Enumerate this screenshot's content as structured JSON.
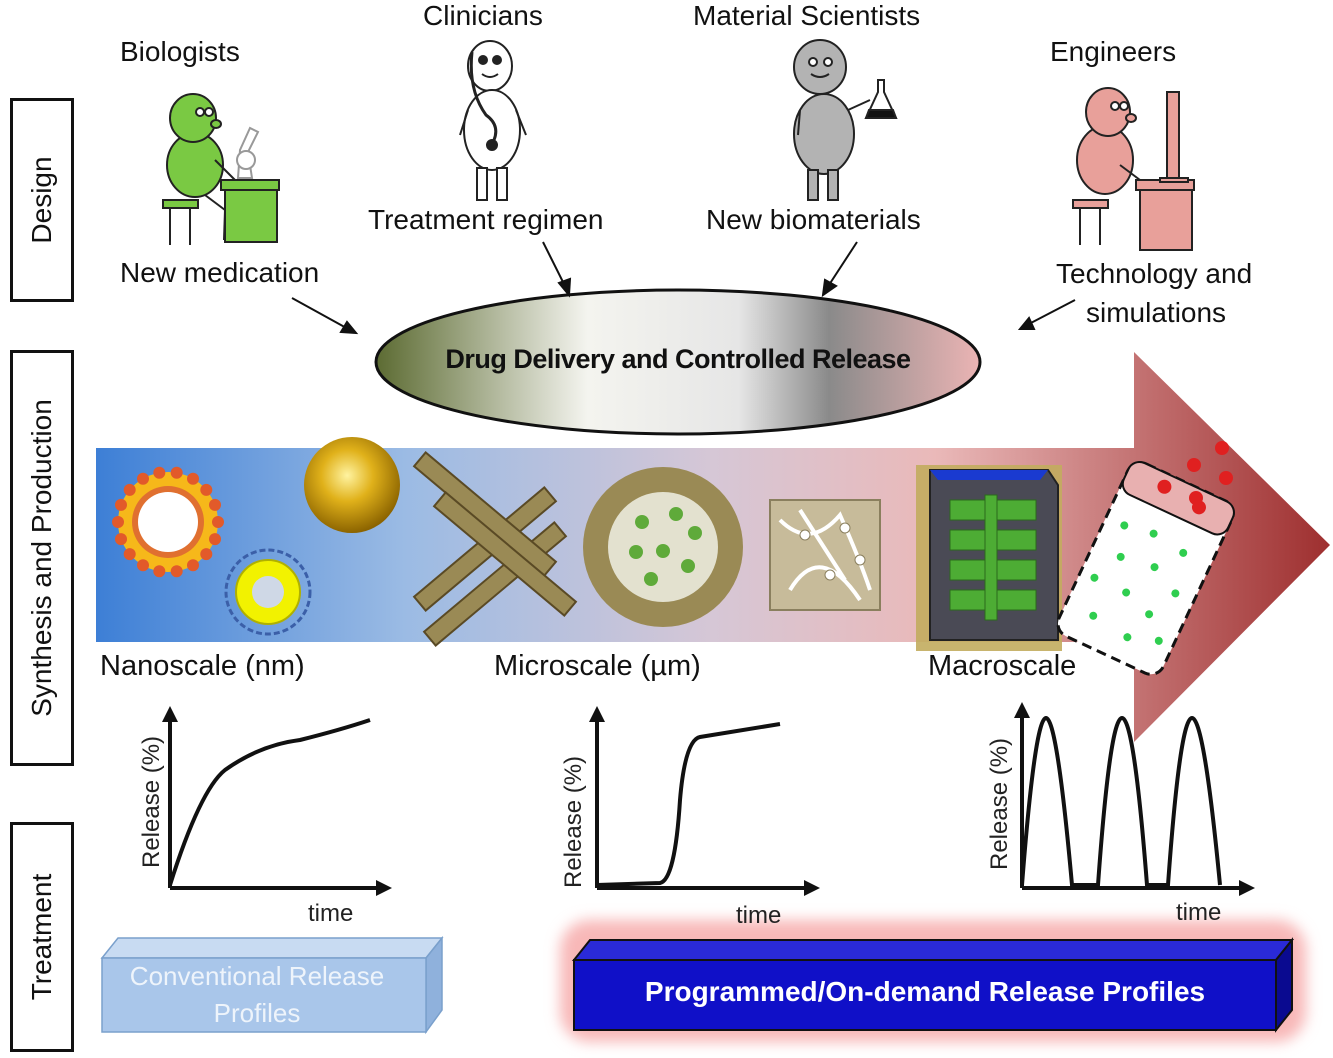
{
  "stages": {
    "design": "Design",
    "synthesis": "Synthesis and Production",
    "treatment": "Treatment"
  },
  "roles": {
    "biologists": "Biologists",
    "clinicians": "Clinicians",
    "material_scientists": "Material Scientists",
    "engineers": "Engineers"
  },
  "contributions": {
    "medication": "New medication",
    "regimen": "Treatment regimen",
    "biomaterials": "New biomaterials",
    "technology_line1": "Technology and",
    "technology_line2": "simulations"
  },
  "central": "Drug Delivery and Controlled Release",
  "scales": {
    "nano": "Nanoscale  (nm)",
    "micro": "Microscale (µm)",
    "macro": "Macroscale"
  },
  "profiles": {
    "ylabel": "Release (%)",
    "xlabel": "time"
  },
  "boxes": {
    "conventional_line1": "Conventional Release",
    "conventional_line2": "Profiles",
    "programmed": "Programmed/On-demand  Release Profiles"
  },
  "colors": {
    "biologist": "#7ac943",
    "clinician": "#ffffff",
    "scientist": "#b3b3b3",
    "engineer": "#e8a09a",
    "arrow_start": "#4a86d4",
    "arrow_end": "#a33636",
    "programmed_box": "#1010c8",
    "conventional_box": "#a9c6ea"
  }
}
